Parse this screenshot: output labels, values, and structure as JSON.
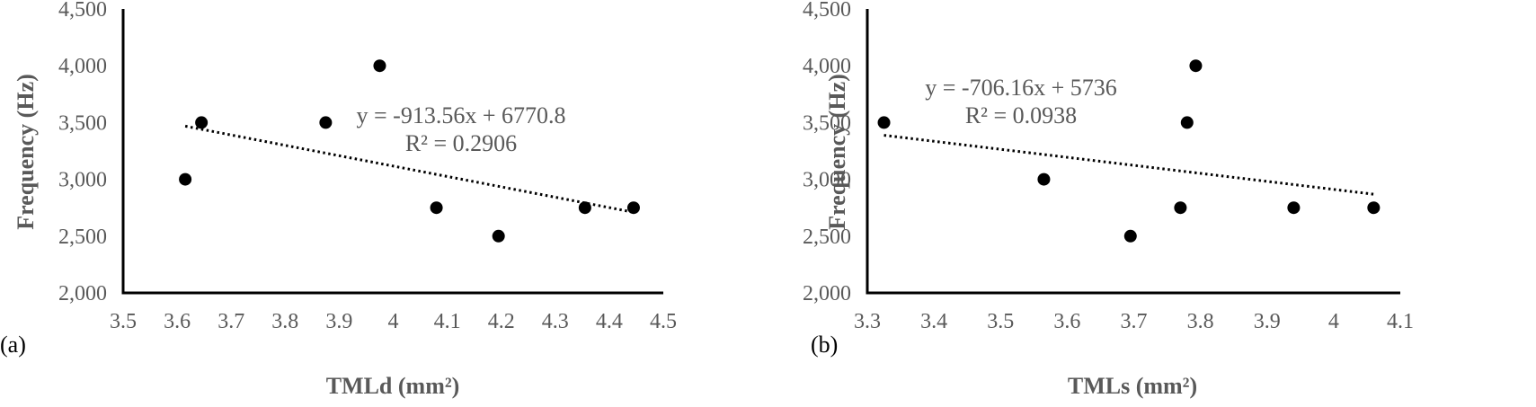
{
  "colors": {
    "axis": "#000000",
    "text": "#595959",
    "marker": "#000000",
    "trendline": "#000000"
  },
  "chart_data": [
    {
      "type": "scatter",
      "panel_label": "(a)",
      "xlabel": "TMLd (mm²)",
      "ylabel": "Frequency (Hz)",
      "xlim": [
        3.5,
        4.5
      ],
      "ylim": [
        2000,
        4500
      ],
      "x_ticks": [
        3.5,
        3.6,
        3.7,
        3.8,
        3.9,
        4.0,
        4.1,
        4.2,
        4.3,
        4.4,
        4.5
      ],
      "x_tick_labels": [
        "3.5",
        "3.6",
        "3.7",
        "3.8",
        "3.9",
        "4",
        "4.1",
        "4.2",
        "4.3",
        "4.4",
        "4.5"
      ],
      "y_ticks": [
        2000,
        2500,
        3000,
        3500,
        4000,
        4500
      ],
      "y_tick_labels": [
        "2,000",
        "2,500",
        "3,000",
        "3,500",
        "4,000",
        "4,500"
      ],
      "points": [
        {
          "x": 3.615,
          "y": 3000
        },
        {
          "x": 3.645,
          "y": 3500
        },
        {
          "x": 3.875,
          "y": 3500
        },
        {
          "x": 3.975,
          "y": 4000
        },
        {
          "x": 4.08,
          "y": 2750
        },
        {
          "x": 4.195,
          "y": 2500
        },
        {
          "x": 4.355,
          "y": 2750
        },
        {
          "x": 4.445,
          "y": 2750
        }
      ],
      "trendline": {
        "type": "linear",
        "slope": -913.56,
        "intercept": 6770.8,
        "x_range": [
          3.615,
          4.445
        ]
      },
      "equation": "y = -913.56x + 6770.8",
      "r_squared": "R² = 0.2906",
      "grid": false
    },
    {
      "type": "scatter",
      "panel_label": "(b)",
      "xlabel": "TMLs (mm²)",
      "ylabel": "Frequency (Hz)",
      "xlim": [
        3.3,
        4.1
      ],
      "ylim": [
        2000,
        4500
      ],
      "x_ticks": [
        3.3,
        3.4,
        3.5,
        3.6,
        3.7,
        3.8,
        3.9,
        4.0,
        4.1
      ],
      "x_tick_labels": [
        "3.3",
        "3.4",
        "3.5",
        "3.6",
        "3.7",
        "3.8",
        "3.9",
        "4",
        "4.1"
      ],
      "y_ticks": [
        2000,
        2500,
        3000,
        3500,
        4000,
        4500
      ],
      "y_tick_labels": [
        "2,000",
        "2,500",
        "3,000",
        "3,500",
        "4,000",
        "4,500"
      ],
      "points": [
        {
          "x": 3.325,
          "y": 3500
        },
        {
          "x": 3.565,
          "y": 3000
        },
        {
          "x": 3.695,
          "y": 2500
        },
        {
          "x": 3.77,
          "y": 2750
        },
        {
          "x": 3.78,
          "y": 3500
        },
        {
          "x": 3.793,
          "y": 4000
        },
        {
          "x": 3.94,
          "y": 2750
        },
        {
          "x": 4.06,
          "y": 2750
        }
      ],
      "trendline": {
        "type": "linear",
        "slope": -706.16,
        "intercept": 5736,
        "x_range": [
          3.325,
          4.06
        ]
      },
      "equation": "y = -706.16x + 5736",
      "r_squared": "R² = 0.0938",
      "grid": false
    }
  ]
}
